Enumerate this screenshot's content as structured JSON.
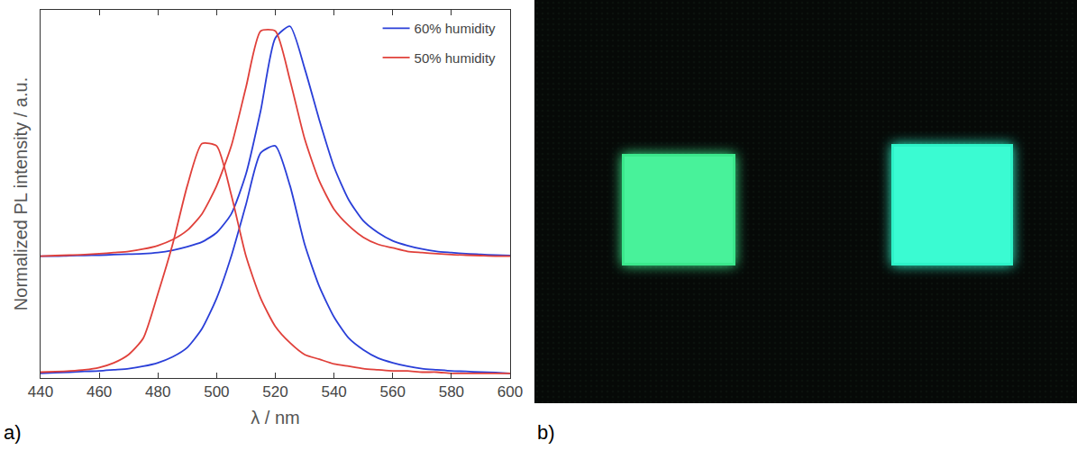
{
  "chart_data": {
    "type": "line",
    "xlabel": "λ / nm",
    "ylabel": "Normalized PL intensity / a.u.",
    "x": [
      440,
      445,
      450,
      455,
      460,
      465,
      470,
      475,
      480,
      485,
      490,
      495,
      500,
      505,
      510,
      515,
      520,
      525,
      530,
      535,
      540,
      545,
      550,
      555,
      560,
      565,
      570,
      575,
      580,
      585,
      590,
      595,
      600
    ],
    "series": [
      {
        "name": "60% humidity",
        "color": "#2a3fd8",
        "values": [
          0.5,
          0.5,
          0.502,
          0.503,
          0.504,
          0.506,
          0.508,
          0.51,
          0.515,
          0.525,
          0.54,
          0.56,
          0.6,
          0.68,
          0.85,
          1.12,
          1.43,
          1.48,
          1.3,
          1.08,
          0.88,
          0.74,
          0.65,
          0.6,
          0.565,
          0.545,
          0.53,
          0.52,
          0.515,
          0.51,
          0.507,
          0.504,
          0.502
        ]
      },
      {
        "name": "50% humidity",
        "color": "#e0403a",
        "values": [
          0.5,
          0.502,
          0.504,
          0.506,
          0.51,
          0.515,
          0.52,
          0.53,
          0.545,
          0.57,
          0.61,
          0.68,
          0.8,
          0.97,
          1.22,
          1.46,
          1.46,
          1.25,
          1.0,
          0.82,
          0.7,
          0.63,
          0.58,
          0.55,
          0.535,
          0.52,
          0.515,
          0.51,
          0.506,
          0.504,
          0.502,
          0.5,
          0.5
        ]
      },
      {
        "name": "60% humidity",
        "color": "#2a3fd8",
        "values": [
          0,
          0.003,
          0.005,
          0.008,
          0.01,
          0.015,
          0.02,
          0.03,
          0.045,
          0.07,
          0.11,
          0.19,
          0.32,
          0.5,
          0.72,
          0.94,
          0.97,
          0.8,
          0.55,
          0.37,
          0.24,
          0.15,
          0.1,
          0.065,
          0.045,
          0.03,
          0.02,
          0.015,
          0.01,
          0.008,
          0.005,
          0.003,
          0
        ]
      },
      {
        "name": "50% humidity",
        "color": "#e0403a",
        "values": [
          0.005,
          0.007,
          0.01,
          0.015,
          0.025,
          0.045,
          0.08,
          0.15,
          0.34,
          0.55,
          0.8,
          0.98,
          0.97,
          0.76,
          0.5,
          0.32,
          0.2,
          0.13,
          0.08,
          0.06,
          0.04,
          0.03,
          0.02,
          0.015,
          0.01,
          0.01,
          0.005,
          0.005,
          0,
          0,
          0,
          0,
          0
        ]
      }
    ],
    "xlim": [
      440,
      600
    ],
    "xticks": [
      440,
      460,
      480,
      500,
      520,
      540,
      560,
      580,
      600
    ],
    "ylim": [
      -0.02,
      1.55
    ],
    "tick_labels": "x",
    "legend": "upper right",
    "grid": false
  },
  "panel_labels": [
    "a)",
    "b)"
  ]
}
